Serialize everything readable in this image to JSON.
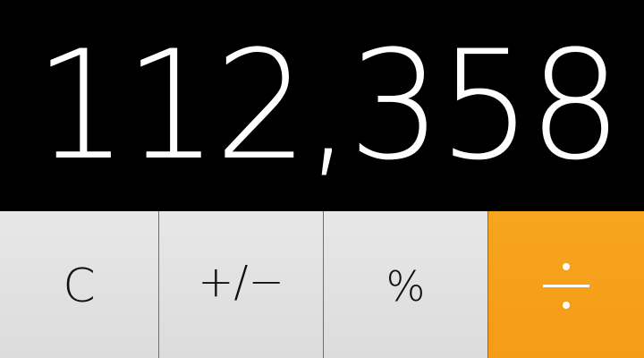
{
  "display": {
    "value": "112,358"
  },
  "keys": {
    "clear": "C",
    "plus_minus": "+∕−",
    "percent": "%",
    "divide": "÷"
  },
  "colors": {
    "display_bg": "#000000",
    "function_key_bg": "#e2e2e2",
    "operator_key_bg": "#f7a11b",
    "text_on_display": "#ffffff"
  },
  "icons": {
    "divide": "divide-icon"
  }
}
